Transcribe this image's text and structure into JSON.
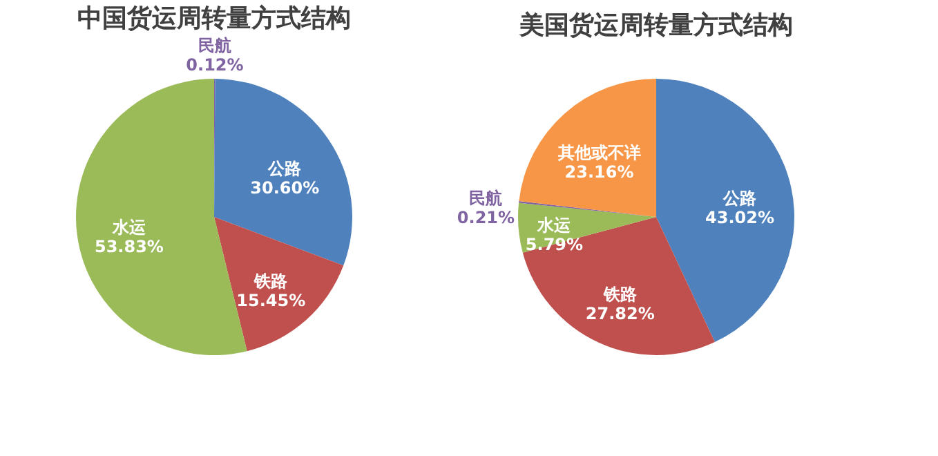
{
  "chart_data": [
    {
      "type": "pie",
      "title": "中国货运周转量方式结构",
      "categories": [
        "民航",
        "公路",
        "铁路",
        "水运"
      ],
      "values": [
        0.12,
        30.6,
        15.45,
        53.83
      ],
      "value_labels": [
        "0.12%",
        "30.60%",
        "15.45%",
        "53.83%"
      ],
      "colors": [
        "#8064a2",
        "#4f81bd",
        "#c0504d",
        "#9bbb59"
      ]
    },
    {
      "type": "pie",
      "title": "美国货运周转量方式结构",
      "categories": [
        "公路",
        "铁路",
        "水运",
        "民航",
        "其他或不详"
      ],
      "values": [
        43.02,
        27.82,
        5.79,
        0.21,
        23.16
      ],
      "value_labels": [
        "43.02%",
        "27.82%",
        "5.79%",
        "0.21%",
        "23.16%"
      ],
      "colors": [
        "#4f81bd",
        "#c0504d",
        "#9bbb59",
        "#8064a2",
        "#f79646"
      ]
    }
  ]
}
